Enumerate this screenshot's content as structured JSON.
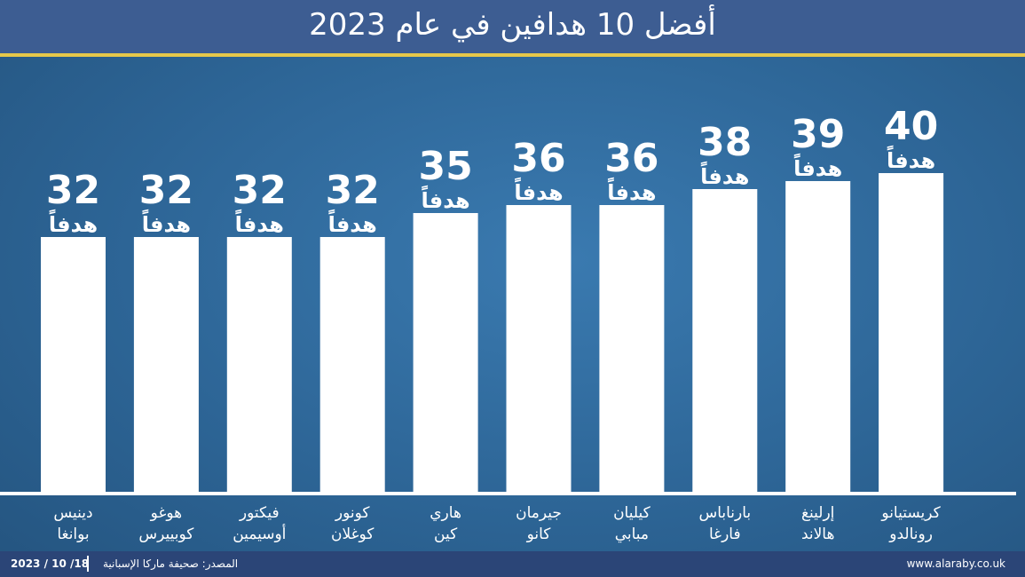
{
  "chart_data": {
    "type": "bar",
    "title": "أفضل 10 هدافين في عام 2023",
    "categories": [
      "دينيس\nبوانغا",
      "هوغو\nكوبييرس",
      "فيكتور\nأوسيمين",
      "كونور\nكوغلان",
      "هاري\nكين",
      "جيرمان\nكانو",
      "كيليان\nمبابي",
      "بارناباس\nفارغا",
      "إرلينغ\nهالاند",
      "كريستيانو\nرونالدو"
    ],
    "values": [
      32,
      32,
      32,
      32,
      35,
      36,
      36,
      38,
      39,
      40
    ],
    "unit_label": "هدفاً",
    "color": "#ffffff"
  },
  "footer": {
    "date": "2023 / 10 /18",
    "source": "المصدر: صحيفة ماركا الإسبانية",
    "website": "www.alaraby.co.uk"
  }
}
